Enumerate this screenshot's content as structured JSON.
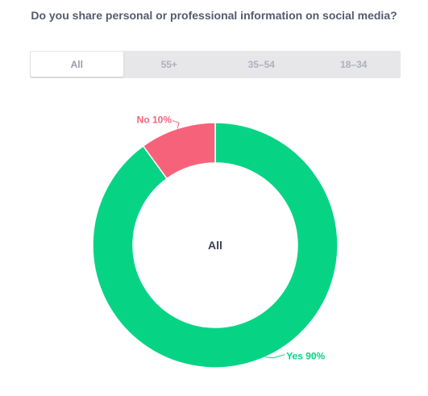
{
  "question": "Do you share personal or professional information on social media?",
  "tabs": [
    {
      "label": "All",
      "active": true
    },
    {
      "label": "55+",
      "active": false
    },
    {
      "label": "35–54",
      "active": false
    },
    {
      "label": "18–34",
      "active": false
    }
  ],
  "chart_data": {
    "type": "pie",
    "subtype": "donut",
    "center_label": "All",
    "slices": [
      {
        "label": "Yes 90%",
        "category": "Yes",
        "value": 90,
        "color": "#06d484"
      },
      {
        "label": "No 10%",
        "category": "No",
        "value": 10,
        "color": "#f7627b"
      }
    ]
  }
}
